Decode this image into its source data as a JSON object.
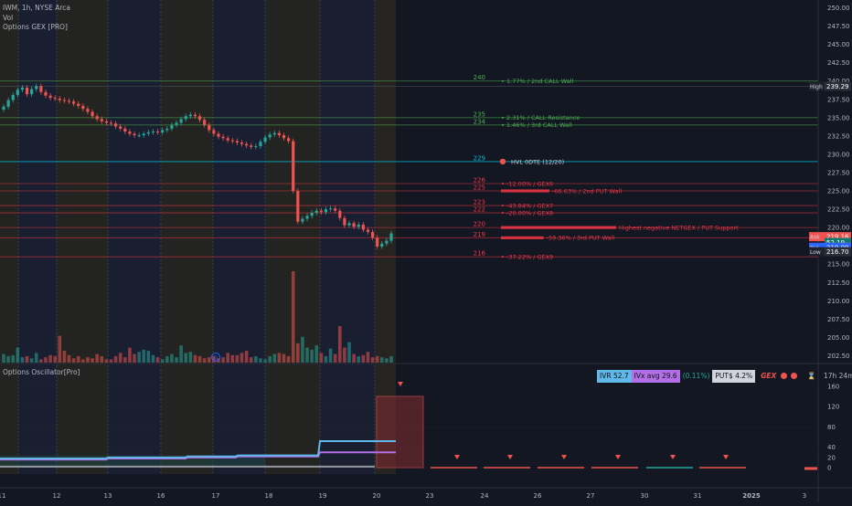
{
  "header": {
    "symbol_line": "IWM, 1h, NYSE Arca",
    "volume_label": "Vol",
    "gex_indicator": "Options GEX [PRO]",
    "oscillator_indicator": "Options Oscillator[Pro]"
  },
  "iv_bar": {
    "ivr": "IVR 52.7",
    "ivx_avg": "IVx avg 29.6",
    "ivx_change": "(0.11%)",
    "puts": "PUT$ 4.2%",
    "gex_label": "GEX",
    "timer": "17h 24m"
  },
  "colors": {
    "background": "#131722",
    "up": "#26a69a",
    "down": "#ef5350",
    "call_line": "#4caf50",
    "hvl_line": "#00bcd4",
    "put_line": "#f23645",
    "osc_blue": "#5fb8e8",
    "osc_purple": "#b26fe8"
  },
  "chart_data": [
    {
      "type": "candlestick",
      "symbol": "IWM",
      "interval": "1h",
      "ylim": [
        201.5,
        251
      ],
      "y_ticks": [
        202.5,
        205,
        207.5,
        210,
        212.5,
        215,
        217.5,
        220,
        222.5,
        225,
        227.5,
        230,
        232.5,
        235,
        237.5,
        240,
        242.5,
        245,
        247.5,
        250
      ],
      "x_tick_labels": [
        "11",
        "12",
        "13",
        "16",
        "17",
        "18",
        "19",
        "20",
        "23",
        "24",
        "26",
        "27",
        "30",
        "31",
        "2025",
        "3"
      ],
      "price_labels": [
        {
          "text": "High",
          "value": "239.29",
          "y": 239.29
        },
        {
          "text": "Ask",
          "value": "219.16",
          "y": 218.75
        },
        {
          "text": "",
          "value": "52.19",
          "y": 217.95
        },
        {
          "text": "",
          "value": "219.10",
          "y": 217.3
        },
        {
          "text": "Bid",
          "value": "219.09",
          "y": 217.3
        },
        {
          "text": "Low",
          "value": "216.70",
          "y": 216.7
        }
      ],
      "close_path": [
        236.5,
        237.4,
        238.1,
        238.8,
        239.1,
        238.2,
        238.9,
        239.3,
        238.5,
        238.0,
        237.7,
        237.6,
        237.4,
        237.3,
        237.2,
        236.9,
        236.6,
        236.2,
        235.8,
        235.2,
        234.8,
        234.5,
        234.3,
        234.2,
        233.8,
        233.5,
        233.1,
        232.8,
        232.6,
        232.6,
        232.8,
        233.0,
        233.1,
        233.0,
        233.3,
        233.5,
        234.0,
        234.3,
        234.8,
        235.2,
        235.4,
        235.2,
        234.7,
        234.0,
        233.3,
        232.8,
        232.4,
        232.2,
        231.9,
        231.8,
        231.6,
        231.4,
        231.2,
        231.0,
        231.1,
        231.7,
        232.3,
        232.7,
        232.9,
        232.6,
        232.2,
        231.8,
        225.0,
        220.8,
        221.2,
        221.6,
        222.0,
        222.3,
        222.1,
        222.5,
        222.6,
        222.3,
        221.3,
        220.3,
        220.6,
        220.1,
        220.4,
        219.7,
        219.4,
        218.6,
        217.4,
        217.8,
        218.2,
        219.2
      ],
      "volume": [
        8,
        6,
        7,
        14,
        5,
        6,
        4,
        9,
        3,
        5,
        7,
        6,
        25,
        11,
        7,
        4,
        6,
        3,
        5,
        4,
        8,
        6,
        3,
        3,
        6,
        9,
        5,
        14,
        8,
        10,
        12,
        11,
        7,
        5,
        3,
        6,
        8,
        5,
        16,
        9,
        10,
        7,
        6,
        4,
        5,
        6,
        4,
        5,
        9,
        7,
        7,
        9,
        11,
        5,
        6,
        4,
        3,
        6,
        8,
        9,
        8,
        6,
        85,
        18,
        24,
        14,
        12,
        16,
        9,
        6,
        13,
        8,
        34,
        14,
        19,
        8,
        6,
        7,
        10,
        5,
        6,
        5,
        4,
        6
      ],
      "gex_levels": [
        {
          "level": "240",
          "y": 240,
          "kind": "call",
          "label": "1.77% / 2nd CALL Wall",
          "bar": 0
        },
        {
          "level": "235",
          "y": 235,
          "kind": "call",
          "label": "2.31% / CALL Resistance",
          "bar": 0
        },
        {
          "level": "234",
          "y": 234,
          "kind": "call",
          "label": "1.46% / 3rd CALL Wall",
          "bar": 0
        },
        {
          "level": "229",
          "y": 229,
          "kind": "hvl",
          "label": "HVL 0DTE (12/20)",
          "bar": 0
        },
        {
          "level": "226",
          "y": 226,
          "kind": "put",
          "label": "-12.00% / GEX6",
          "bar": 0
        },
        {
          "level": "225",
          "y": 225,
          "kind": "put",
          "label": "-66.63% / 2nd PUT Wall",
          "bar": 0.42
        },
        {
          "level": "223",
          "y": 223,
          "kind": "put",
          "label": "-43.84% / GEX7",
          "bar": 0
        },
        {
          "level": "222",
          "y": 222,
          "kind": "put",
          "label": "-20.00% / GEX8",
          "bar": 0
        },
        {
          "level": "220",
          "y": 220,
          "kind": "put",
          "label": "Highest negative NETGEX / PUT Support",
          "bar": 1
        },
        {
          "level": "219",
          "y": 218.6,
          "kind": "put",
          "label": "-59.36% / 3rd PUT Wall",
          "bar": 0.37
        },
        {
          "level": "216",
          "y": 216,
          "kind": "put",
          "label": "-37.22% / GEX9",
          "bar": 0
        }
      ]
    },
    {
      "type": "line",
      "title": "Options Oscillator[Pro]",
      "ylim": [
        -3,
        175
      ],
      "y_ticks": [
        0,
        20,
        40,
        80,
        120,
        160
      ],
      "series": [
        {
          "name": "blue",
          "values": [
            18,
            18,
            18,
            18,
            20,
            20,
            20,
            22,
            22,
            24,
            24,
            24,
            52,
            52,
            52,
            52
          ]
        },
        {
          "name": "purple",
          "values": [
            16,
            16,
            16,
            16,
            18,
            18,
            18,
            20,
            20,
            22,
            22,
            22,
            30,
            30,
            30,
            30
          ]
        }
      ],
      "hist_current": 140,
      "markers": 7
    }
  ]
}
